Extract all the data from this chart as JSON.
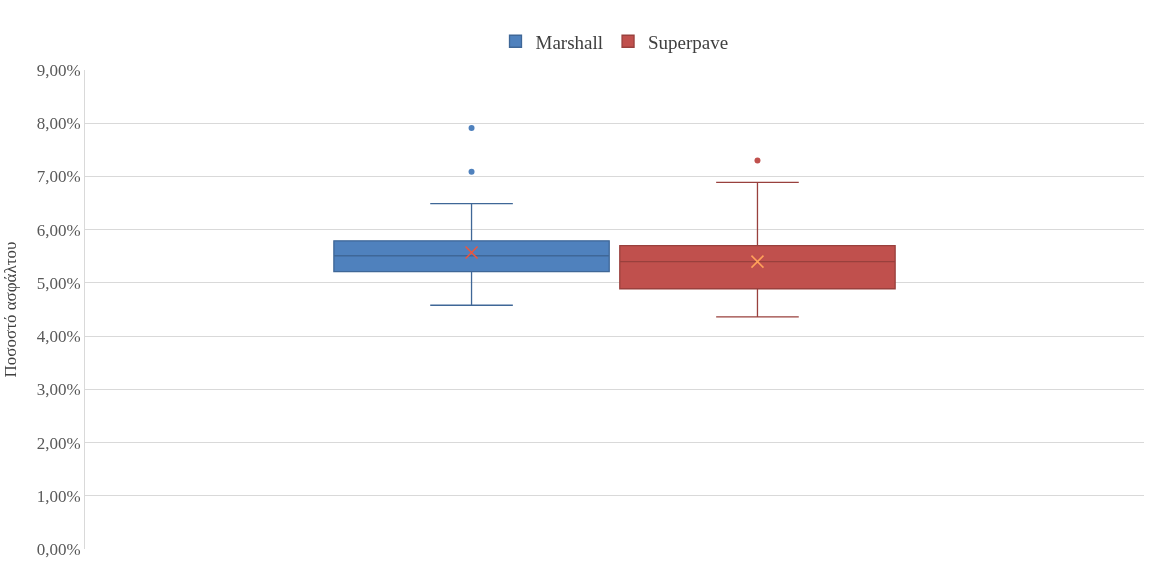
{
  "chart_data": {
    "type": "box",
    "ylabel": "Ποσοστό ασφάλτου",
    "categories": [
      null
    ],
    "series": [
      {
        "name": "Marshall",
        "color": "#4f81bd",
        "boxes": [
          {
            "low": 4.58,
            "q1": 5.21,
            "median": 5.51,
            "q3": 5.79,
            "high": 6.49,
            "mean": 5.57,
            "outliers": [
              7.09,
              7.91
            ]
          }
        ]
      },
      {
        "name": "Superpave",
        "color": "#c0504d",
        "boxes": [
          {
            "low": 4.36,
            "q1": 4.89,
            "median": 5.4,
            "q3": 5.7,
            "high": 6.89,
            "mean": 5.4,
            "outliers": [
              7.3
            ]
          }
        ]
      }
    ],
    "ylim": [
      0,
      9
    ],
    "yticks": [
      {
        "value": 0,
        "label": "0,00%"
      },
      {
        "value": 1,
        "label": "1,00%"
      },
      {
        "value": 2,
        "label": "2,00%"
      },
      {
        "value": 3,
        "label": "3,00%"
      },
      {
        "value": 4,
        "label": "4,00%"
      },
      {
        "value": 5,
        "label": "5,00%"
      },
      {
        "value": 6,
        "label": "6,00%"
      },
      {
        "value": 7,
        "label": "7,00%"
      },
      {
        "value": 8,
        "label": "8,00%"
      },
      {
        "value": 9,
        "label": "9,00%"
      }
    ],
    "grid": "y",
    "legend": "top",
    "marker": "circle"
  }
}
